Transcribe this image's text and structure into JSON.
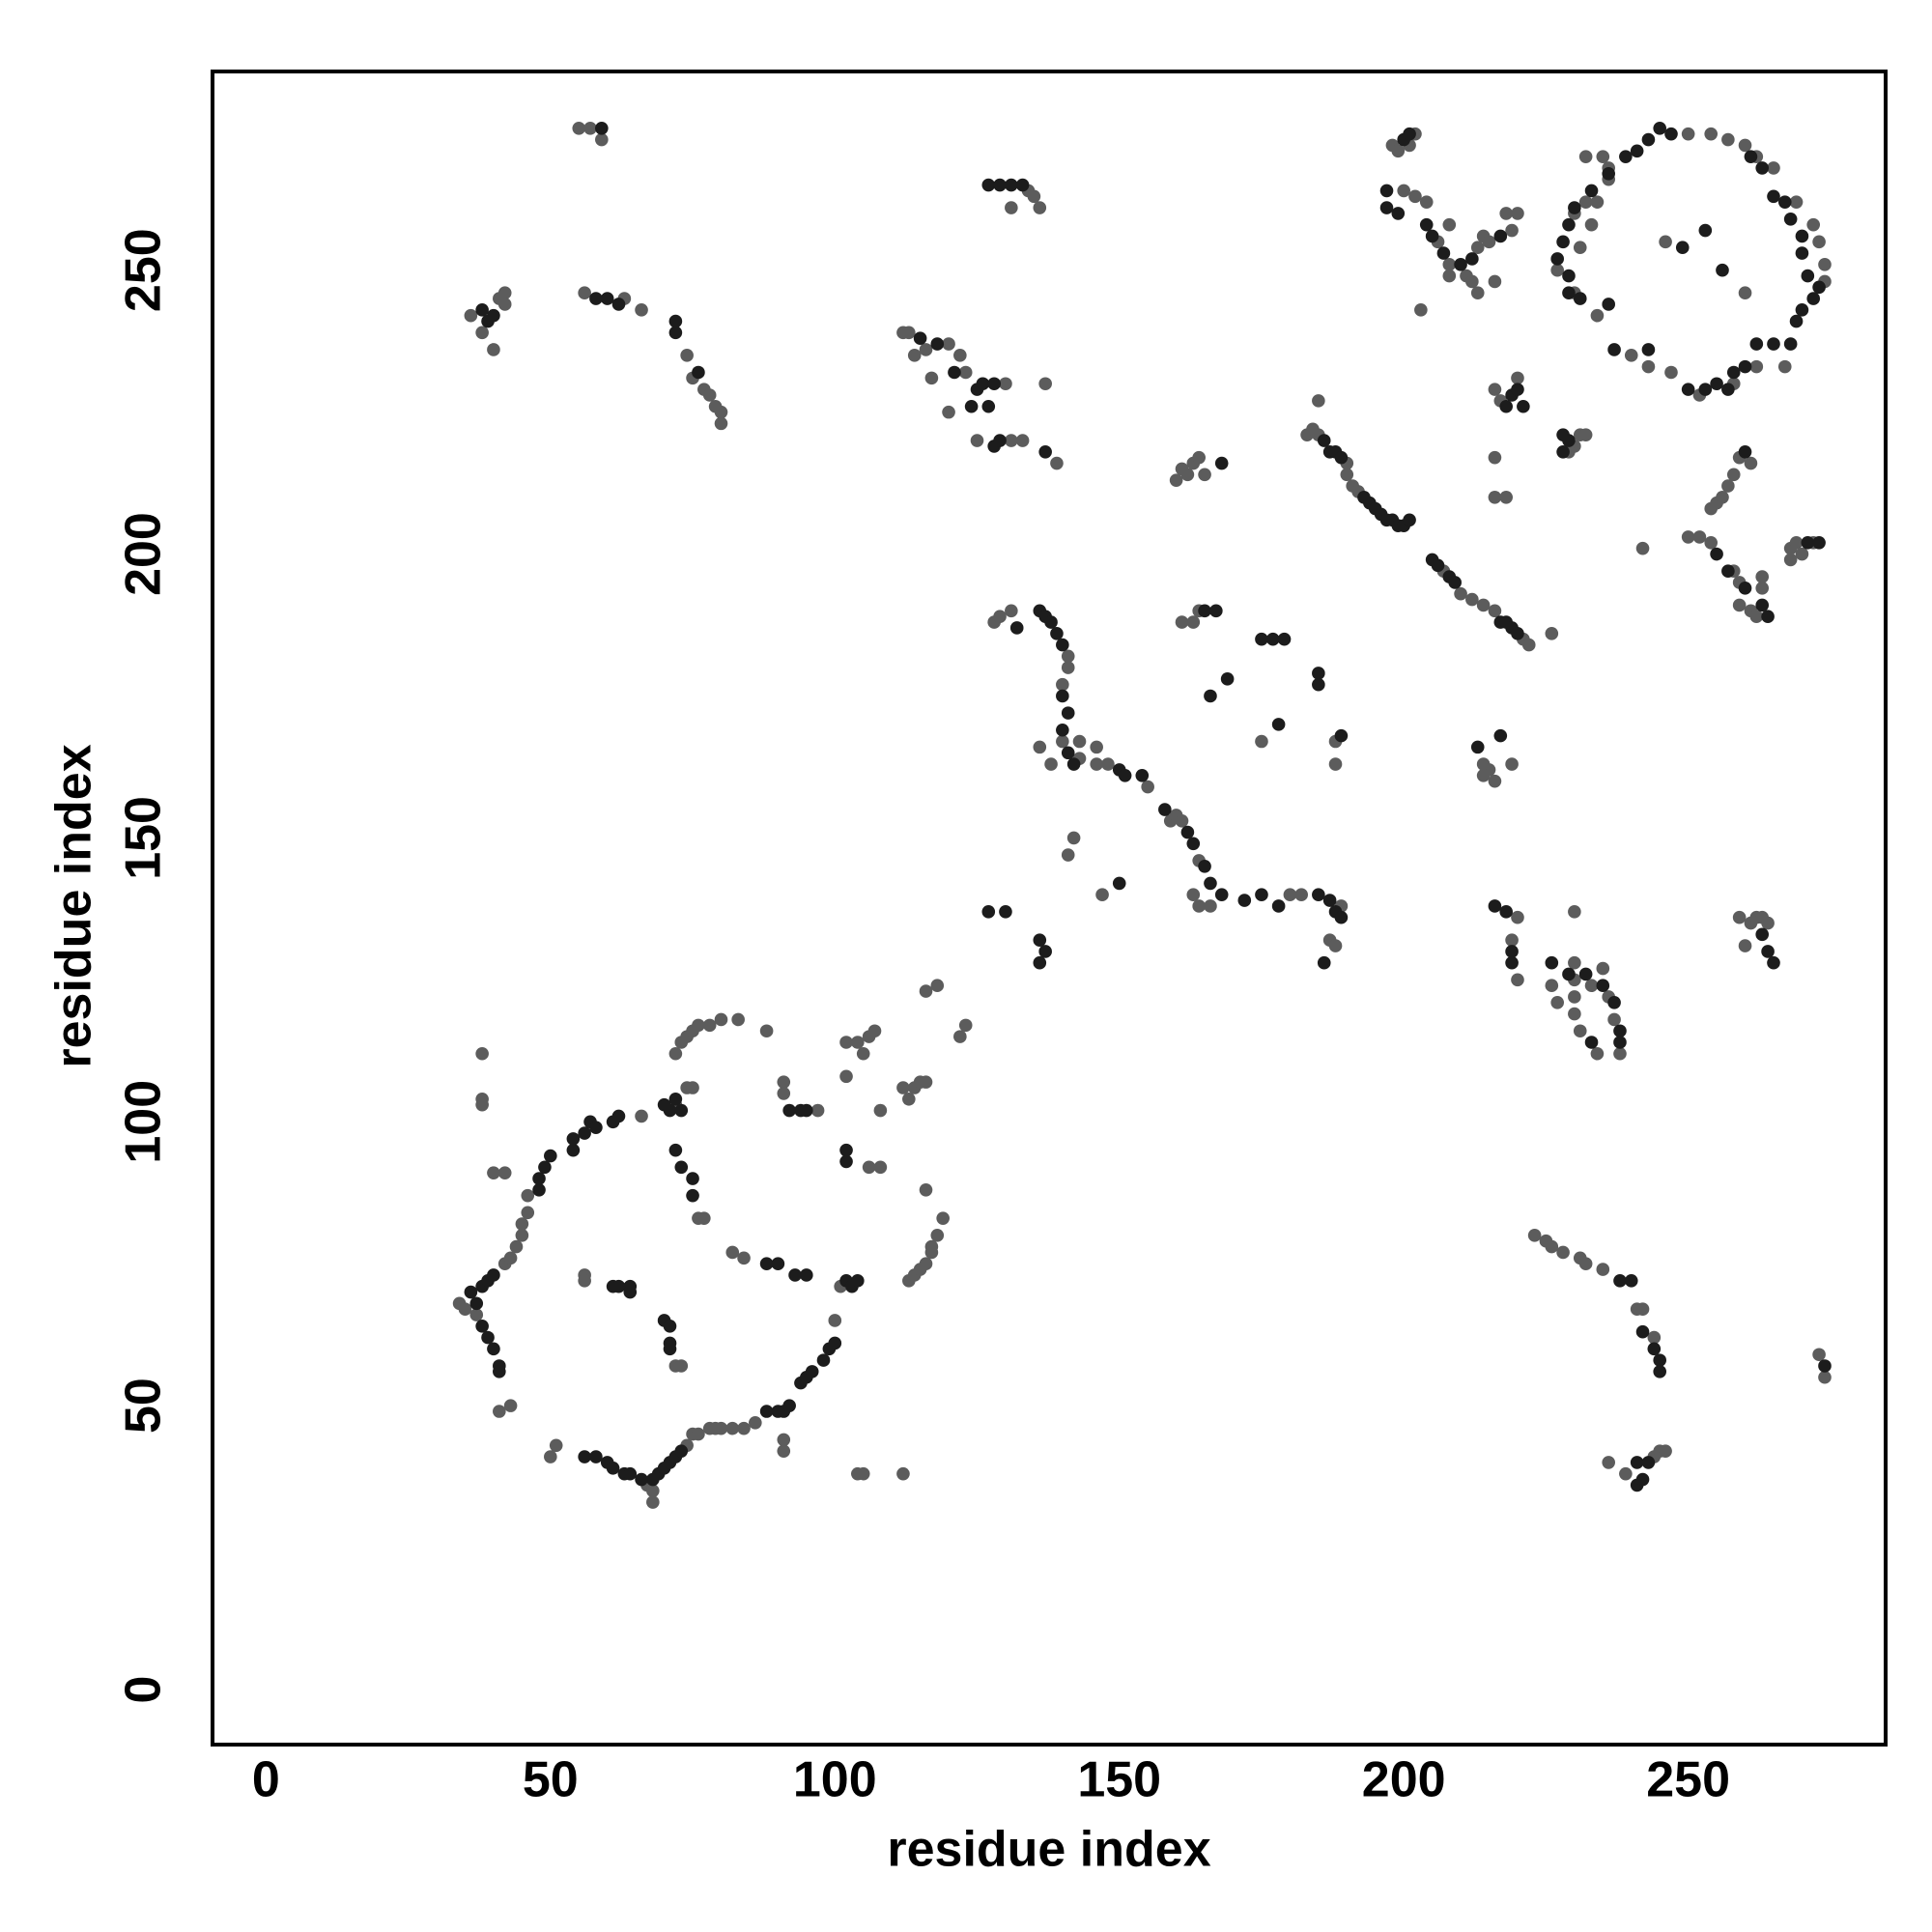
{
  "chart_data": {
    "type": "scatter",
    "xlabel": "residue index",
    "ylabel": "residue index",
    "xlim": [
      -9.4,
      284.7
    ],
    "ylim": [
      -9.7,
      285
    ],
    "xticks": [
      0,
      50,
      100,
      150,
      200,
      250
    ],
    "yticks": [
      0,
      50,
      100,
      150,
      200,
      250
    ],
    "grid": false,
    "series": [
      {
        "color": "#5c5c5c",
        "x": [
          34,
          35,
          37,
          42,
          43,
          44,
          45,
          45,
          46,
          46,
          38,
          38,
          38,
          42,
          40,
          41,
          43,
          50,
          51,
          56,
          56,
          72,
          73,
          67,
          68,
          68,
          74,
          75,
          76,
          78,
          79,
          80,
          82,
          84,
          86,
          91,
          91,
          72,
          73,
          74,
          75,
          76,
          78,
          80,
          83,
          88,
          74,
          75,
          72,
          66,
          76,
          77,
          82,
          84,
          91,
          91,
          97,
          100,
          101,
          102,
          102,
          104,
          106,
          107,
          105,
          106,
          108,
          104,
          105,
          112,
          108,
          113,
          114,
          115,
          116,
          117,
          117,
          118,
          119,
          116,
          113,
          114,
          115,
          116,
          112,
          116,
          118,
          122,
          123,
          250,
          254,
          257,
          260,
          262,
          265,
          269,
          272,
          273,
          274,
          274,
          232,
          235,
          236,
          236,
          232,
          234,
          230,
          233,
          231,
          227,
          230,
          234,
          240,
          243,
          247,
          252,
          258,
          262,
          267,
          260,
          246,
          36,
          41,
          42,
          42,
          38,
          40,
          55,
          57,
          59,
          56,
          63,
          66,
          74,
          75,
          77,
          78,
          79,
          80,
          80,
          236,
          239,
          244,
          245,
          246,
          223,
          225,
          226,
          228,
          231,
          232,
          235,
          241,
          242,
          244,
          273,
          274,
          134,
          135,
          136,
          131,
          112,
          113,
          116,
          120,
          122,
          123,
          130,
          120,
          125,
          131,
          133,
          137,
          139,
          117,
          114,
          128,
          129,
          131,
          141,
          141,
          140,
          140,
          143,
          143,
          136,
          138,
          146,
          146,
          148,
          155,
          159,
          160,
          161,
          164,
          163,
          164,
          166,
          182,
          180,
          189,
          187,
          188,
          141,
          142,
          147,
          161,
          163,
          164,
          188,
          188,
          175,
          160,
          161,
          162,
          163,
          164,
          165,
          183,
          184,
          185,
          190,
          190,
          191,
          192,
          207,
          210,
          212,
          214,
          216,
          221,
          222,
          226,
          185,
          198,
          199,
          202,
          201,
          200,
          202,
          204,
          206,
          208,
          213,
          214,
          215,
          219,
          220,
          218,
          208,
          211,
          212,
          213,
          216,
          208,
          203,
          216,
          217,
          220,
          230,
          231,
          232,
          229,
          216,
          218,
          216,
          254,
          255,
          256,
          257,
          258,
          259,
          261,
          254,
          252,
          258,
          259,
          259,
          261,
          263,
          263,
          262,
          242,
          250,
          268,
          269,
          270,
          272,
          268,
          214,
          215,
          216,
          214,
          219,
          220,
          219,
          220,
          226,
          227,
          230,
          233,
          236,
          237,
          238,
          231,
          234,
          230,
          230,
          230,
          235,
          230,
          259,
          261,
          262,
          263,
          264,
          260
        ],
        "values": [
          68,
          67,
          66,
          75,
          76,
          78,
          80,
          82,
          84,
          87,
          112,
          104,
          103,
          91,
          91,
          49,
          50,
          41,
          43,
          73,
          72,
          57,
          57,
          36,
          35,
          33,
          43,
          45,
          45,
          46,
          46,
          46,
          46,
          46,
          47,
          42,
          44,
          112,
          114,
          115,
          116,
          117,
          117,
          118,
          118,
          116,
          106,
          106,
          103,
          101,
          83,
          83,
          77,
          76,
          107,
          105,
          102,
          65,
          71,
          108,
          114,
          114,
          115,
          116,
          112,
          92,
          92,
          38,
          38,
          38,
          102,
          72,
          73,
          74,
          75,
          77,
          78,
          80,
          83,
          88,
          104,
          106,
          107,
          107,
          106,
          123,
          124,
          115,
          117,
          274,
          274,
          273,
          272,
          270,
          268,
          262,
          258,
          255,
          251,
          248,
          270,
          270,
          268,
          266,
          262,
          262,
          260,
          258,
          254,
          250,
          246,
          242,
          235,
          233,
          232,
          228,
          230,
          233,
          233,
          246,
          255,
          242,
          245,
          246,
          244,
          239,
          236,
          275,
          275,
          273,
          246,
          245,
          243,
          235,
          231,
          229,
          228,
          226,
          225,
          223,
          40,
          38,
          41,
          42,
          42,
          80,
          79,
          78,
          77,
          76,
          75,
          74,
          67,
          67,
          62,
          59,
          55,
          264,
          263,
          261,
          261,
          239,
          239,
          236,
          237,
          235,
          232,
          230,
          225,
          220,
          220,
          220,
          230,
          216,
          231,
          235,
          188,
          189,
          190,
          182,
          180,
          177,
          167,
          167,
          164,
          166,
          163,
          166,
          163,
          163,
          159,
          153,
          154,
          153,
          146,
          140,
          138,
          138,
          140,
          140,
          138,
          132,
          131,
          147,
          150,
          140,
          188,
          188,
          190,
          167,
          163,
          167,
          213,
          215,
          214,
          216,
          217,
          214,
          221,
          222,
          221,
          216,
          214,
          212,
          211,
          197,
          193,
          192,
          191,
          190,
          185,
          184,
          186,
          227,
          272,
          271,
          274,
          272,
          264,
          263,
          262,
          255,
          251,
          254,
          256,
          255,
          257,
          260,
          260,
          258,
          249,
          248,
          246,
          248,
          249,
          243,
          229,
          227,
          231,
          219,
          221,
          221,
          218,
          210,
          210,
          217,
          208,
          209,
          210,
          212,
          214,
          217,
          216,
          202,
          203,
          197,
          195,
          191,
          190,
          194,
          196,
          189,
          201,
          203,
          201,
          202,
          200,
          202,
          199,
          163,
          162,
          160,
          161,
          163,
          136,
          132,
          125,
          124,
          121,
          128,
          124,
          122,
          118,
          112,
          116,
          112,
          119,
          122,
          137,
          127,
          125,
          136,
          135,
          136,
          136,
          135,
          131
        ]
      },
      {
        "color": "#1c1c1c",
        "x": [
          36,
          37,
          38,
          39,
          40,
          38,
          39,
          40,
          41,
          41,
          48,
          48,
          49,
          50,
          54,
          54,
          56,
          57,
          58,
          61,
          62,
          70,
          71,
          72,
          73,
          72,
          73,
          75,
          75,
          70,
          71,
          71,
          71,
          61,
          62,
          64,
          64,
          56,
          58,
          60,
          61,
          63,
          64,
          66,
          68,
          69,
          70,
          71,
          72,
          73,
          88,
          90,
          91,
          92,
          94,
          95,
          96,
          98,
          99,
          100,
          102,
          103,
          104,
          92,
          94,
          95,
          102,
          102,
          88,
          90,
          93,
          95,
          245,
          247,
          243,
          241,
          239,
          236,
          233,
          230,
          229,
          228,
          227,
          229,
          229,
          231,
          236,
          237,
          243,
          250,
          253,
          255,
          257,
          258,
          260,
          262,
          265,
          268,
          269,
          270,
          272,
          273,
          271,
          270,
          270,
          268,
          267,
          265,
          263,
          261,
          253,
          256,
          249,
          39,
          40,
          38,
          59,
          58,
          60,
          62,
          72,
          72,
          76,
          241,
          242,
          243,
          241,
          238,
          240,
          242,
          244,
          245,
          245,
          274,
          127,
          129,
          131,
          133,
          115,
          118,
          121,
          125,
          126,
          128,
          128,
          129,
          124,
          127,
          137,
          132,
          136,
          137,
          138,
          139,
          140,
          140,
          141,
          140,
          141,
          142,
          150,
          151,
          154,
          158,
          162,
          163,
          165,
          166,
          168,
          172,
          175,
          178,
          185,
          187,
          188,
          189,
          186,
          127,
          130,
          136,
          137,
          136,
          150,
          165,
          167,
          175,
          177,
          179,
          185,
          185,
          189,
          169,
          178,
          166,
          168,
          186,
          187,
          188,
          189,
          193,
          194,
          195,
          196,
          197,
          198,
          199,
          200,
          201,
          205,
          206,
          208,
          209,
          217,
          218,
          219,
          220,
          197,
          197,
          199,
          204,
          205,
          207,
          210,
          212,
          217,
          200,
          201,
          219,
          220,
          218,
          221,
          228,
          229,
          228,
          255,
          257,
          260,
          263,
          264,
          260,
          271,
          273,
          216,
          218,
          219,
          219,
          226,
          229,
          232,
          235,
          237,
          238,
          238,
          233,
          264,
          265,
          263,
          217,
          213
        ],
        "values": [
          70,
          68,
          71,
          72,
          73,
          64,
          62,
          60,
          57,
          56,
          88,
          90,
          92,
          94,
          95,
          97,
          98,
          100,
          99,
          100,
          101,
          103,
          102,
          104,
          102,
          95,
          92,
          90,
          87,
          65,
          64,
          61,
          60,
          71,
          71,
          71,
          70,
          41,
          41,
          40,
          39,
          38,
          38,
          37,
          37,
          38,
          39,
          40,
          41,
          42,
          49,
          49,
          49,
          50,
          54,
          55,
          56,
          58,
          60,
          61,
          72,
          71,
          72,
          102,
          102,
          102,
          95,
          93,
          75,
          75,
          73,
          73,
          275,
          274,
          273,
          271,
          270,
          267,
          264,
          261,
          258,
          255,
          252,
          249,
          246,
          245,
          244,
          236,
          236,
          229,
          229,
          230,
          229,
          232,
          233,
          237,
          237,
          237,
          241,
          243,
          245,
          247,
          249,
          253,
          256,
          259,
          262,
          263,
          268,
          270,
          257,
          250,
          254,
          241,
          242,
          243,
          275,
          245,
          245,
          244,
          241,
          239,
          232,
          36,
          37,
          40,
          40,
          72,
          72,
          63,
          60,
          58,
          56,
          57,
          265,
          265,
          265,
          265,
          238,
          237,
          232,
          229,
          230,
          230,
          219,
          220,
          226,
          226,
          218,
          187,
          190,
          189,
          188,
          186,
          184,
          175,
          172,
          169,
          165,
          163,
          162,
          161,
          161,
          155,
          151,
          149,
          145,
          142,
          140,
          139,
          140,
          138,
          140,
          139,
          137,
          136,
          128,
          137,
          137,
          132,
          130,
          128,
          142,
          190,
          190,
          185,
          185,
          185,
          179,
          177,
          168,
          178,
          170,
          175,
          216,
          220,
          218,
          218,
          217,
          210,
          209,
          208,
          207,
          206,
          206,
          205,
          205,
          206,
          199,
          198,
          196,
          195,
          188,
          188,
          187,
          186,
          264,
          261,
          260,
          258,
          256,
          253,
          251,
          252,
          256,
          273,
          274,
          228,
          229,
          226,
          226,
          221,
          220,
          218,
          200,
          197,
          194,
          191,
          189,
          218,
          202,
          202,
          138,
          137,
          130,
          128,
          128,
          126,
          126,
          124,
          121,
          116,
          114,
          114,
          130,
          128,
          133,
          168,
          166
        ]
      }
    ]
  }
}
